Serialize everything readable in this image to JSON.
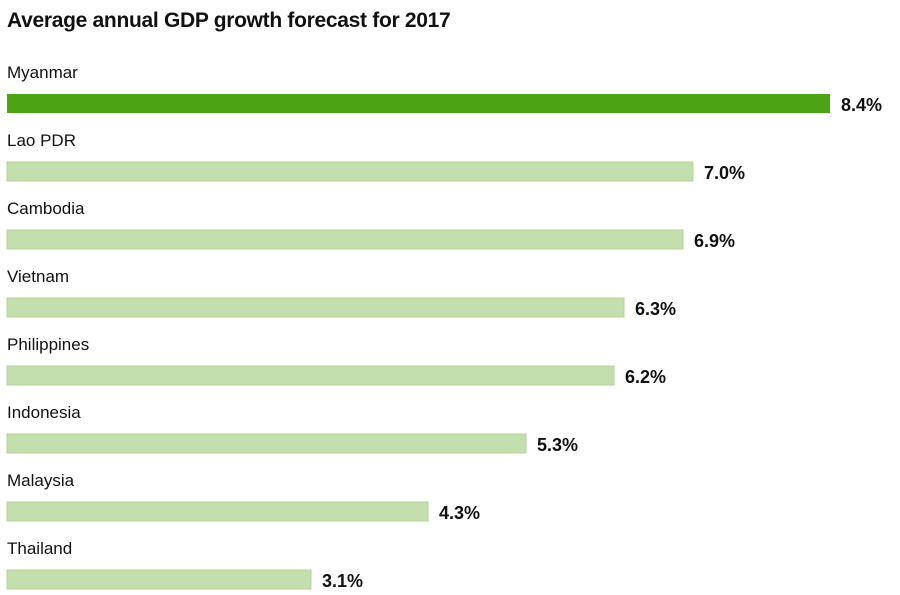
{
  "chart_data": {
    "type": "bar",
    "orientation": "horizontal",
    "title": "Average annual GDP growth forecast for 2017",
    "xlabel": "",
    "ylabel": "",
    "grid": false,
    "xlim": [
      0,
      8.4
    ],
    "categories": [
      "Myanmar",
      "Lao PDR",
      "Cambodia",
      "Vietnam",
      "Philippines",
      "Indonesia",
      "Malaysia",
      "Thailand"
    ],
    "values": [
      8.4,
      7.0,
      6.9,
      6.3,
      6.2,
      5.3,
      4.3,
      3.1
    ],
    "value_labels": [
      "8.4%",
      "7.0%",
      "6.9%",
      "6.3%",
      "6.2%",
      "5.3%",
      "4.3%",
      "3.1%"
    ],
    "highlight_index": 0
  },
  "colors": {
    "highlight": "#4ca414",
    "bar": "#c4dfae",
    "bar_outline": "#b3d39a",
    "text": "#111111"
  }
}
